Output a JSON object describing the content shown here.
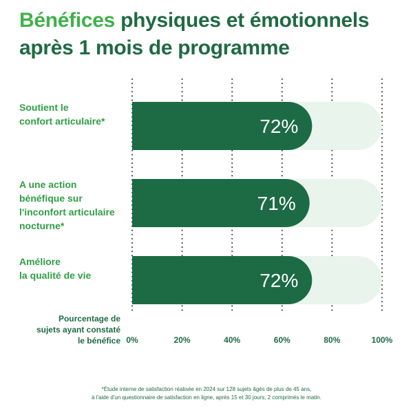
{
  "header": {
    "title_accent": "Bénéfices",
    "title_rest_line1": " physiques et émotionnels",
    "title_line2": "après 1 mois de programme"
  },
  "chart_data": {
    "type": "bar",
    "orientation": "horizontal",
    "categories": [
      [
        "Soutient le",
        "confort articulaire*"
      ],
      [
        "A une action",
        "bénéfique sur",
        "l'inconfort articulaire",
        "nocturne*"
      ],
      [
        "Améliore",
        "la qualité de vie"
      ]
    ],
    "values": [
      72,
      71,
      72
    ],
    "value_labels": [
      "72%",
      "71%",
      "72%"
    ],
    "xlim": [
      0,
      100
    ],
    "x_ticks": [
      "0%",
      "20%",
      "40%",
      "60%",
      "80%",
      "100%"
    ],
    "xlabel": [
      "Pourcentage de",
      "sujets ayant constaté",
      "le bénéfice"
    ],
    "grid": "dotted vertical",
    "colors": {
      "bar": "#1c6b45",
      "track": "#e8f4ec",
      "label": "#2f9e44",
      "text": "#1f6a43",
      "grid": "#333333"
    }
  },
  "footnote": {
    "line1": "*Étude interne de satisfaction réalisée en 2024 sur 128 sujets âgés de plus de 45 ans,",
    "line2": "à l'aide d'un questionnaire de satisfaction en ligne, après 15 et 30 jours, 2 comprimés le matin."
  }
}
